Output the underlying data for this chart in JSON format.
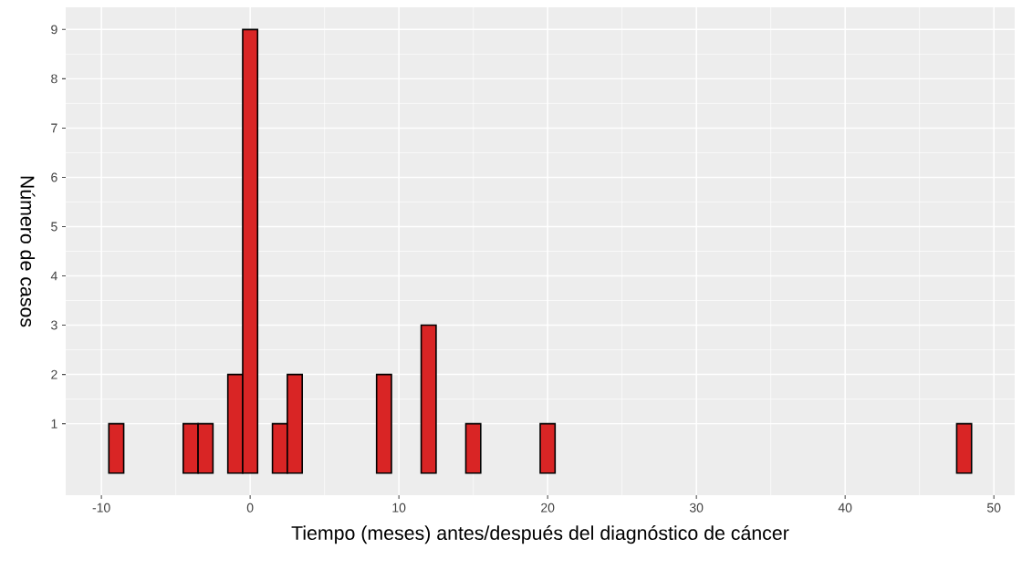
{
  "chart_data": {
    "type": "histogram",
    "xlabel": "Tiempo (meses) antes/después del diagnóstico de cáncer",
    "ylabel": "Número de casos",
    "bins": [
      -9.5,
      -8.5,
      -7.5,
      -6.5,
      -5.5,
      -4.5,
      -3.5,
      -2.5,
      -1.5,
      -0.5,
      0.5,
      1.5,
      2.5,
      3.5,
      4.5,
      5.5,
      6.5,
      7.5,
      8.5,
      9.5,
      10.5,
      11.5,
      12.5,
      13.5,
      14.5,
      15.5,
      16.5,
      17.5,
      18.5,
      19.5,
      20.5,
      21.5,
      22.5,
      23.5,
      24.5,
      25.5,
      26.5,
      27.5,
      28.5,
      29.5,
      30.5,
      31.5,
      32.5,
      33.5,
      34.5,
      35.5,
      36.5,
      37.5,
      38.5,
      39.5,
      40.5,
      41.5,
      42.5,
      43.5,
      44.5,
      45.5,
      46.5,
      47.5,
      48.5
    ],
    "values": [
      1,
      0,
      0,
      0,
      0,
      1,
      1,
      0,
      2,
      9,
      0,
      1,
      2,
      0,
      0,
      0,
      0,
      0,
      2,
      0,
      0,
      3,
      0,
      0,
      1,
      0,
      0,
      0,
      0,
      1,
      0,
      0,
      0,
      0,
      0,
      0,
      0,
      0,
      0,
      0,
      0,
      0,
      0,
      0,
      0,
      0,
      0,
      0,
      0,
      0,
      0,
      0,
      0,
      0,
      0,
      0,
      0,
      1
    ],
    "color": "#d92525",
    "xlim": [
      -12.4,
      51.4
    ],
    "ylim": [
      -0.45,
      9.45
    ],
    "xticks": [
      -10,
      0,
      10,
      20,
      30,
      40,
      50
    ],
    "yticks": [
      1,
      2,
      3,
      4,
      5,
      6,
      7,
      8,
      9
    ],
    "grid": true
  }
}
